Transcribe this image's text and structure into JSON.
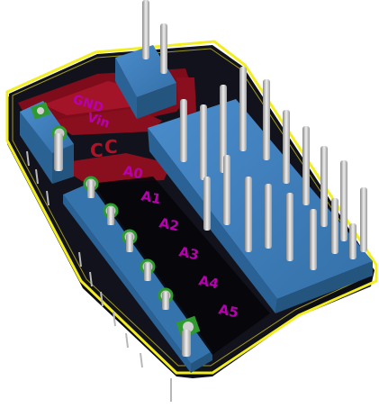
{
  "viewer": {
    "background": "#ffffff",
    "board_color": "#0a0a12",
    "copper_color": "#8a0f1e",
    "outline_color": "#f2ee20",
    "silk_color": "#b800b0",
    "header_color": "#3a7bb8",
    "pin_color": "#c8c8c8",
    "pad_color": "#2f9a2f"
  },
  "silkscreen": {
    "gnd": "GND",
    "vin": "Vin",
    "c": "C",
    "a0": "A0",
    "a1": "A1",
    "a2": "A2",
    "a3": "A3",
    "a4": "A4",
    "a5": "A5"
  }
}
